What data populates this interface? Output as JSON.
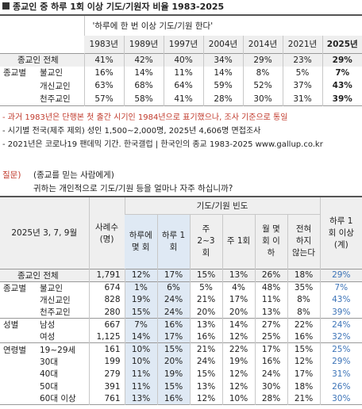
{
  "header": {
    "title": "종교인 중 하루 1회 이상 기도/기원자 비율 1983-2025"
  },
  "table1": {
    "header": "'하루에 한 번 이상 기도/기원 한다'",
    "years": [
      "1983년",
      "1989년",
      "1997년",
      "2004년",
      "2014년",
      "2021년",
      "2025년"
    ],
    "rows": [
      {
        "label": "종교인 전체",
        "values": [
          "41%",
          "42%",
          "40%",
          "34%",
          "29%",
          "23%",
          "29%"
        ]
      },
      {
        "group": "종교별",
        "label": "불교인",
        "values": [
          "16%",
          "14%",
          "11%",
          "14%",
          "8%",
          "5%",
          "7%"
        ]
      },
      {
        "label": "개신교인",
        "values": [
          "63%",
          "68%",
          "64%",
          "59%",
          "52%",
          "37%",
          "43%"
        ]
      },
      {
        "label": "천주교인",
        "values": [
          "57%",
          "58%",
          "41%",
          "28%",
          "30%",
          "31%",
          "39%"
        ]
      }
    ]
  },
  "notes": [
    "- 과거 1983년은 단행본 첫 출간 시기인 1984년으로 표기했으나, 조사 기준으로 통일",
    "- 시기별 전국(제주 제외) 성인 1,500~2,000명, 2025년 4,606명 면접조사",
    "- 2021년은 코로나19 팬데믹 기간. 한국갤럽 | 한국인의 종교 1983-2025 www.gallup.co.kr"
  ],
  "question": {
    "label": "질문)",
    "target": "(종교를 믿는 사람에게)",
    "text": "귀하는 개인적으로 기도/기원 등을 얼마나 자주 하십니까?"
  },
  "table2": {
    "period": "2025년 3, 7, 9월",
    "n_header": "사례수 (명)",
    "group_header": "기도/기원 빈도",
    "columns": [
      "하루에 몇 회",
      "하루 1회",
      "주 2~3회",
      "주 1회",
      "월 몇 회 이하",
      "전혀 하지 않는다"
    ],
    "total_header": "하루 1회 이상 (계)",
    "rows": [
      {
        "label": "종교인 전체",
        "n": "1,791",
        "values": [
          "12%",
          "17%",
          "15%",
          "13%",
          "26%",
          "18%"
        ],
        "total": "29%"
      },
      {
        "group": "종교별",
        "label": "불교인",
        "n": "674",
        "values": [
          "1%",
          "6%",
          "5%",
          "4%",
          "48%",
          "35%"
        ],
        "total": "7%"
      },
      {
        "label": "개신교인",
        "n": "828",
        "values": [
          "19%",
          "24%",
          "21%",
          "17%",
          "11%",
          "8%"
        ],
        "total": "43%"
      },
      {
        "label": "천주교인",
        "n": "280",
        "values": [
          "15%",
          "24%",
          "20%",
          "20%",
          "13%",
          "8%"
        ],
        "total": "39%"
      },
      {
        "group": "성별",
        "label": "남성",
        "n": "667",
        "values": [
          "7%",
          "16%",
          "13%",
          "14%",
          "27%",
          "22%"
        ],
        "total": "24%"
      },
      {
        "label": "여성",
        "n": "1,125",
        "values": [
          "14%",
          "17%",
          "16%",
          "12%",
          "25%",
          "16%"
        ],
        "total": "32%"
      },
      {
        "group": "연령별",
        "label": "19~29세",
        "n": "161",
        "values": [
          "10%",
          "15%",
          "21%",
          "22%",
          "17%",
          "15%"
        ],
        "total": "25%"
      },
      {
        "label": "30대",
        "n": "199",
        "values": [
          "10%",
          "20%",
          "24%",
          "19%",
          "16%",
          "12%"
        ],
        "total": "29%"
      },
      {
        "label": "40대",
        "n": "279",
        "values": [
          "11%",
          "19%",
          "15%",
          "12%",
          "24%",
          "17%"
        ],
        "total": "31%"
      },
      {
        "label": "50대",
        "n": "391",
        "values": [
          "11%",
          "15%",
          "13%",
          "12%",
          "30%",
          "18%"
        ],
        "total": "26%"
      },
      {
        "label": "60대 이상",
        "n": "761",
        "values": [
          "13%",
          "16%",
          "12%",
          "10%",
          "28%",
          "21%"
        ],
        "total": "30%"
      }
    ]
  }
}
